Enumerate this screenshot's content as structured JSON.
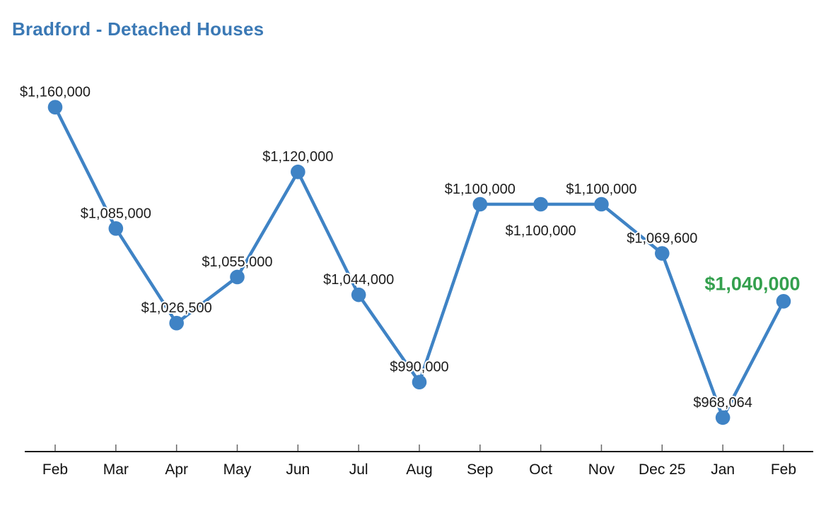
{
  "chart_data": {
    "type": "line",
    "title": "Bradford - Detached Houses",
    "x_categories": [
      "Feb",
      "Mar",
      "Apr",
      "May",
      "Jun",
      "Jul",
      "Aug",
      "Sep",
      "Oct",
      "Nov",
      "Dec 25",
      "Jan",
      "Feb"
    ],
    "values": [
      1160000,
      1085000,
      1026500,
      1055000,
      1120000,
      1044000,
      990000,
      1100000,
      1100000,
      1100000,
      1069600,
      968064,
      1040000
    ],
    "point_labels": [
      "$1,160,000",
      "$1,085,000",
      "$1,026,500",
      "$1,055,000",
      "$1,120,000",
      "$1,044,000",
      "$990,000",
      "$1,100,000",
      "$1,100,000",
      "$1,100,000",
      "$1,069,600",
      "$968,064",
      "$1,040,000"
    ],
    "label_positions": [
      "above",
      "above",
      "above",
      "above",
      "above",
      "above",
      "above",
      "above",
      "below",
      "above",
      "above",
      "above",
      "above"
    ],
    "highlight": {
      "index": 12,
      "dx": -44,
      "color": "#34a04e",
      "bold": true
    },
    "ylim": [
      947050,
      1182593
    ],
    "grid": "off",
    "legend": "none",
    "colors": {
      "line": "#3f83c5",
      "point": "#3f83c5",
      "title": "#3b79b5",
      "label": "#1c1c1c",
      "axis": "#1a1a1a",
      "tick": "#666666",
      "x_label": "#111111",
      "background": "#ffffff"
    }
  }
}
